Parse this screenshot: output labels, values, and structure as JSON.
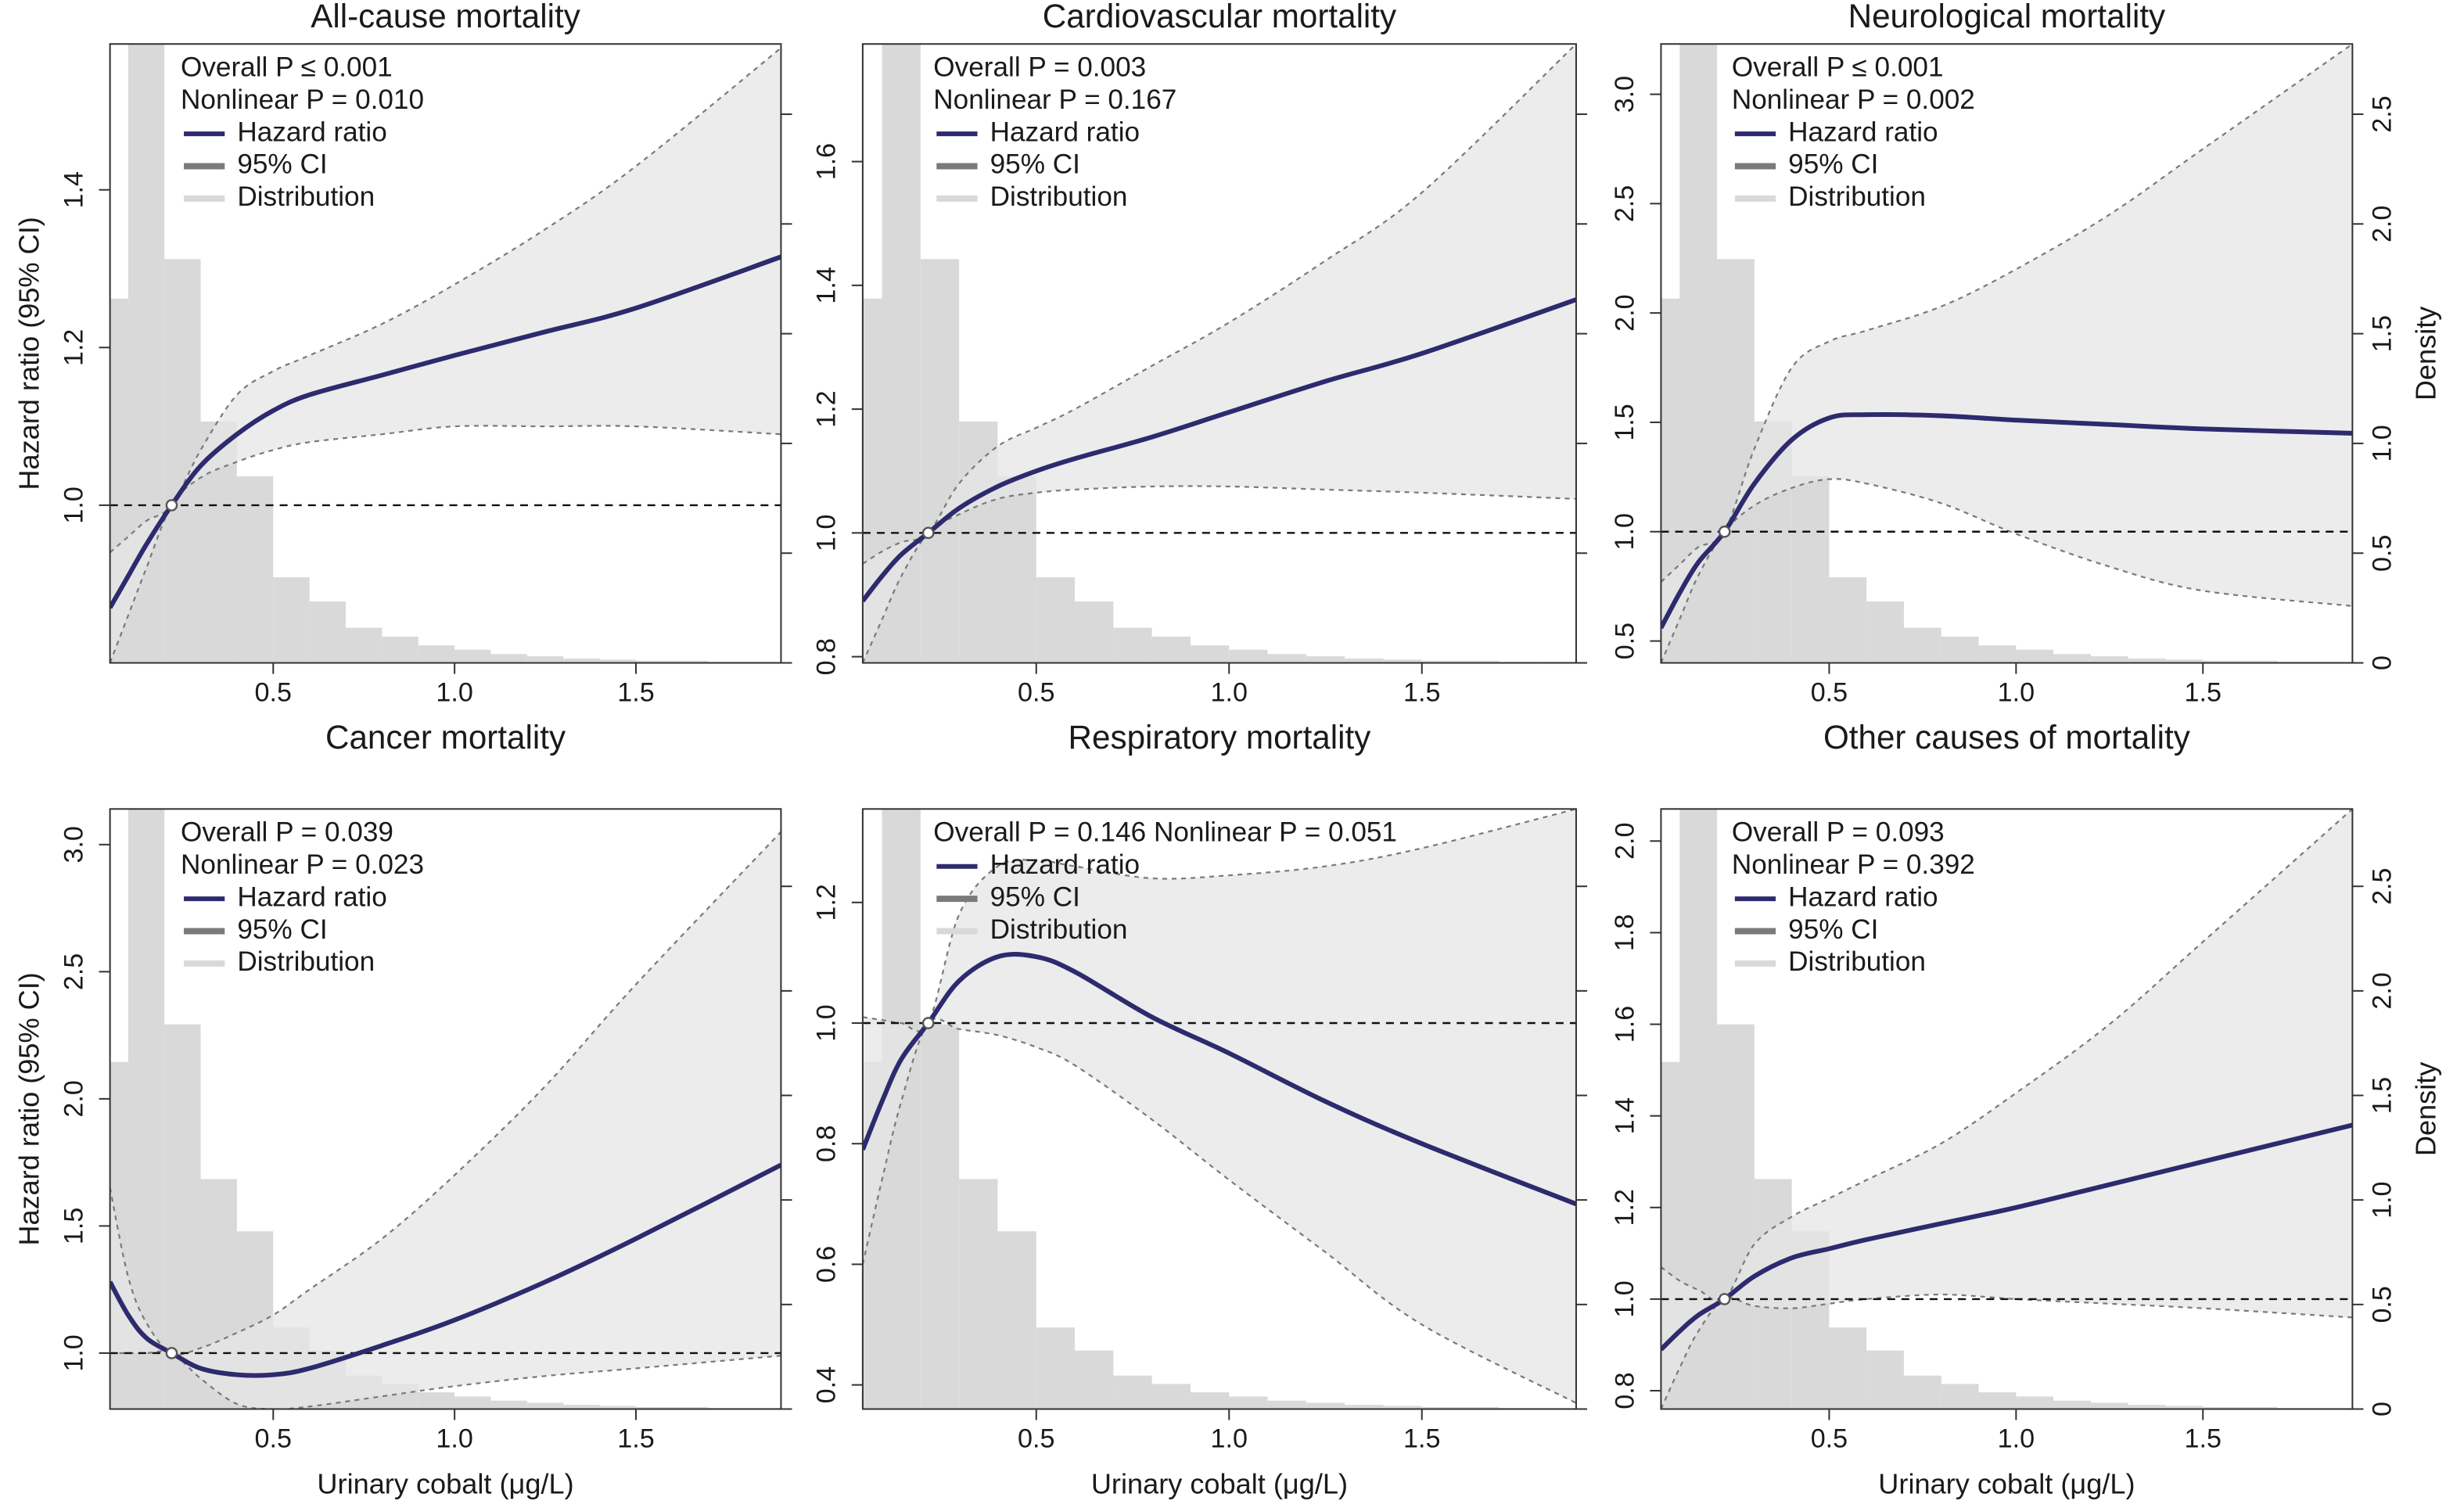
{
  "chart_data": [
    {
      "type": "line",
      "title": "All-cause mortality",
      "ylabel": "Hazard ratio (95% CI)",
      "annotations": [
        "Overall P ≤ 0.001",
        "Nonlinear P = 0.010"
      ],
      "x": [
        0.05,
        0.1,
        0.15,
        0.22,
        0.3,
        0.4,
        0.5,
        0.6,
        0.8,
        1.0,
        1.25,
        1.5,
        1.9
      ],
      "series": [
        {
          "name": "Hazard ratio",
          "color": "#2d2a6e",
          "values": [
            0.87,
            0.91,
            0.95,
            1.0,
            1.05,
            1.09,
            1.12,
            1.14,
            1.165,
            1.19,
            1.22,
            1.25,
            1.315
          ]
        }
      ],
      "ci": {
        "name": "95% CI",
        "color": "#7a7a7a",
        "fill": "#e6e6e6",
        "upper": [
          0.94,
          0.96,
          0.98,
          1.0,
          1.07,
          1.14,
          1.17,
          1.19,
          1.23,
          1.28,
          1.35,
          1.43,
          1.58
        ],
        "lower": [
          0.8,
          0.86,
          0.92,
          1.0,
          1.035,
          1.055,
          1.07,
          1.08,
          1.09,
          1.1,
          1.1,
          1.1,
          1.09
        ]
      },
      "distribution": {
        "name": "Distribution",
        "color": "#d9d9d9",
        "bins": [
          0.05,
          0.1,
          0.2,
          0.3,
          0.4,
          0.5,
          0.6,
          0.7,
          0.8,
          0.9,
          1.0,
          1.1,
          1.2,
          1.3,
          1.4,
          1.5,
          1.6,
          1.7,
          1.8,
          1.9
        ],
        "density": [
          1.66,
          3.5,
          1.84,
          1.1,
          0.85,
          0.39,
          0.28,
          0.16,
          0.12,
          0.08,
          0.06,
          0.04,
          0.03,
          0.02,
          0.015,
          0.01,
          0.01,
          0.005,
          0.005
        ]
      },
      "hline": 1,
      "reference": {
        "x": 0.22,
        "y": 1
      },
      "xlim": [
        0.05,
        1.9
      ],
      "xticks": [
        0.5,
        {
          "value": 1,
          "label": "1.0"
        },
        1.5
      ],
      "ylim": [
        0.8,
        1.585
      ],
      "yticks": [
        {
          "value": 1,
          "label": "1.0"
        },
        1.2,
        1.4
      ],
      "y2lim": [
        0,
        2.82
      ],
      "y2ticks": [
        0,
        0.5,
        {
          "value": 1,
          "label": "1.0"
        },
        1.5,
        {
          "value": 2,
          "label": "2.0"
        },
        2.5
      ],
      "y2ticklabels": false
    },
    {
      "type": "line",
      "title": "Cardiovascular mortality",
      "annotations": [
        "Overall P = 0.003",
        "Nonlinear P = 0.167"
      ],
      "x": [
        0.05,
        0.1,
        0.15,
        0.22,
        0.3,
        0.4,
        0.5,
        0.6,
        0.8,
        1.0,
        1.25,
        1.5,
        1.9
      ],
      "series": [
        {
          "name": "Hazard ratio",
          "color": "#2d2a6e",
          "values": [
            0.89,
            0.93,
            0.965,
            1.0,
            1.04,
            1.075,
            1.1,
            1.12,
            1.155,
            1.195,
            1.245,
            1.29,
            1.377
          ]
        }
      ],
      "ci": {
        "name": "95% CI",
        "color": "#7a7a7a",
        "fill": "#e6e6e6",
        "upper": [
          0.95,
          0.97,
          0.985,
          1.0,
          1.08,
          1.14,
          1.17,
          1.2,
          1.27,
          1.34,
          1.44,
          1.55,
          1.79
        ],
        "lower": [
          0.79,
          0.86,
          0.93,
          1.0,
          1.03,
          1.055,
          1.065,
          1.07,
          1.075,
          1.075,
          1.07,
          1.065,
          1.055
        ]
      },
      "distribution": {
        "name": "Distribution",
        "color": "#d9d9d9",
        "bins": [
          0.05,
          0.1,
          0.2,
          0.3,
          0.4,
          0.5,
          0.6,
          0.7,
          0.8,
          0.9,
          1.0,
          1.1,
          1.2,
          1.3,
          1.4,
          1.5,
          1.6,
          1.7,
          1.8,
          1.9
        ],
        "density": [
          1.66,
          3.5,
          1.84,
          1.1,
          0.85,
          0.39,
          0.28,
          0.16,
          0.12,
          0.08,
          0.06,
          0.04,
          0.03,
          0.02,
          0.015,
          0.01,
          0.01,
          0.005,
          0.005
        ]
      },
      "hline": 1,
      "reference": {
        "x": 0.22,
        "y": 1
      },
      "xlim": [
        0.05,
        1.9
      ],
      "xticks": [
        0.5,
        {
          "value": 1,
          "label": "1.0"
        },
        1.5
      ],
      "ylim": [
        0.79,
        1.79
      ],
      "yticks": [
        0.8,
        {
          "value": 1,
          "label": "1.0"
        },
        1.2,
        1.4,
        1.6
      ],
      "y2lim": [
        0,
        2.82
      ],
      "y2ticks": [
        0,
        0.5,
        {
          "value": 1,
          "label": "1.0"
        },
        1.5,
        {
          "value": 2,
          "label": "2.0"
        },
        2.5
      ],
      "y2ticklabels": false
    },
    {
      "type": "line",
      "title": "Neurological mortality",
      "y2label": "Density",
      "annotations": [
        "Overall P ≤ 0.001",
        "Nonlinear P = 0.002"
      ],
      "x": [
        0.05,
        0.1,
        0.15,
        0.22,
        0.3,
        0.4,
        0.5,
        0.6,
        0.8,
        1.0,
        1.25,
        1.5,
        1.9
      ],
      "series": [
        {
          "name": "Hazard ratio",
          "color": "#2d2a6e",
          "values": [
            0.56,
            0.72,
            0.86,
            1.0,
            1.22,
            1.42,
            1.52,
            1.535,
            1.53,
            1.51,
            1.49,
            1.47,
            1.45
          ]
        }
      ],
      "ci": {
        "name": "95% CI",
        "color": "#7a7a7a",
        "fill": "#e6e6e6",
        "upper": [
          0.77,
          0.85,
          0.93,
          1.0,
          1.38,
          1.75,
          1.87,
          1.92,
          2.03,
          2.2,
          2.45,
          2.75,
          3.23
        ],
        "lower": [
          0.4,
          0.6,
          0.8,
          1.0,
          1.12,
          1.2,
          1.24,
          1.22,
          1.13,
          0.99,
          0.84,
          0.73,
          0.66
        ]
      },
      "distribution": {
        "name": "Distribution",
        "color": "#d9d9d9",
        "bins": [
          0.05,
          0.1,
          0.2,
          0.3,
          0.4,
          0.5,
          0.6,
          0.7,
          0.8,
          0.9,
          1.0,
          1.1,
          1.2,
          1.3,
          1.4,
          1.5,
          1.6,
          1.7,
          1.8,
          1.9
        ],
        "density": [
          1.66,
          3.5,
          1.84,
          1.1,
          0.85,
          0.39,
          0.28,
          0.16,
          0.12,
          0.08,
          0.06,
          0.04,
          0.03,
          0.02,
          0.015,
          0.01,
          0.01,
          0.005,
          0.005
        ]
      },
      "hline": 1,
      "reference": {
        "x": 0.22,
        "y": 1
      },
      "xlim": [
        0.05,
        1.9
      ],
      "xticks": [
        0.5,
        {
          "value": 1,
          "label": "1.0"
        },
        1.5
      ],
      "ylim": [
        0.4,
        3.23
      ],
      "yticks": [
        0.5,
        {
          "value": 1,
          "label": "1.0"
        },
        1.5,
        {
          "value": 2,
          "label": "2.0"
        },
        2.5,
        {
          "value": 3,
          "label": "3.0"
        }
      ],
      "y2lim": [
        0,
        2.82
      ],
      "y2ticks": [
        0,
        0.5,
        {
          "value": 1,
          "label": "1.0"
        },
        1.5,
        {
          "value": 2,
          "label": "2.0"
        },
        2.5
      ],
      "y2ticklabels": true
    },
    {
      "type": "line",
      "title": "Cancer mortality",
      "xlabel": "Urinary cobalt (μg/L)",
      "ylabel": "Hazard ratio (95% CI)",
      "annotations": [
        "Overall P = 0.039",
        "Nonlinear P = 0.023"
      ],
      "x": [
        0.05,
        0.1,
        0.15,
        0.22,
        0.3,
        0.4,
        0.5,
        0.6,
        0.8,
        1.0,
        1.25,
        1.5,
        1.9
      ],
      "series": [
        {
          "name": "Hazard ratio",
          "color": "#2d2a6e",
          "values": [
            1.28,
            1.15,
            1.06,
            1.0,
            0.94,
            0.915,
            0.915,
            0.94,
            1.03,
            1.13,
            1.28,
            1.45,
            1.74
          ]
        }
      ],
      "ci": {
        "name": "95% CI",
        "color": "#7a7a7a",
        "fill": "#e6e6e6",
        "upper": [
          1.65,
          1.3,
          1.12,
          1.0,
          1.02,
          1.08,
          1.15,
          1.25,
          1.45,
          1.7,
          2.05,
          2.45,
          3.05
        ],
        "lower": [
          1.0,
          1.0,
          1.0,
          1.0,
          0.9,
          0.8,
          0.78,
          0.79,
          0.83,
          0.87,
          0.91,
          0.94,
          0.99
        ]
      },
      "distribution": {
        "name": "Distribution",
        "color": "#d9d9d9",
        "bins": [
          0.05,
          0.1,
          0.2,
          0.3,
          0.4,
          0.5,
          0.6,
          0.7,
          0.8,
          0.9,
          1.0,
          1.1,
          1.2,
          1.3,
          1.4,
          1.5,
          1.6,
          1.7,
          1.8,
          1.9
        ],
        "density": [
          1.66,
          3.5,
          1.84,
          1.1,
          0.85,
          0.39,
          0.28,
          0.16,
          0.12,
          0.08,
          0.06,
          0.04,
          0.03,
          0.02,
          0.015,
          0.01,
          0.01,
          0.005,
          0.005
        ]
      },
      "hline": 1,
      "reference": {
        "x": 0.22,
        "y": 1
      },
      "xlim": [
        0.05,
        1.9
      ],
      "xticks": [
        0.5,
        {
          "value": 1,
          "label": "1.0"
        },
        1.5
      ],
      "ylim": [
        0.78,
        3.14
      ],
      "yticks": [
        {
          "value": 1,
          "label": "1.0"
        },
        1.5,
        {
          "value": 2,
          "label": "2.0"
        },
        2.5,
        {
          "value": 3,
          "label": "3.0"
        }
      ],
      "y2lim": [
        0,
        2.87
      ],
      "y2ticks": [
        0,
        0.5,
        {
          "value": 1,
          "label": "1.0"
        },
        1.5,
        {
          "value": 2,
          "label": "2.0"
        },
        2.5
      ],
      "y2ticklabels": false
    },
    {
      "type": "line",
      "title": "Respiratory mortality",
      "xlabel": "Urinary cobalt (μg/L)",
      "annotations": [
        "Overall P = 0.146 Nonlinear P = 0.051"
      ],
      "x": [
        0.05,
        0.1,
        0.15,
        0.22,
        0.3,
        0.4,
        0.5,
        0.6,
        0.8,
        1.0,
        1.25,
        1.5,
        1.9
      ],
      "series": [
        {
          "name": "Hazard ratio",
          "color": "#2d2a6e",
          "values": [
            0.79,
            0.87,
            0.94,
            1.0,
            1.07,
            1.11,
            1.11,
            1.085,
            1.01,
            0.95,
            0.87,
            0.8,
            0.7
          ]
        }
      ],
      "ci": {
        "name": "95% CI",
        "color": "#7a7a7a",
        "fill": "#e6e6e6",
        "upper": [
          1.01,
          1.005,
          1.0,
          1.0,
          1.18,
          1.26,
          1.27,
          1.26,
          1.24,
          1.245,
          1.26,
          1.29,
          1.355
        ],
        "lower": [
          0.6,
          0.74,
          0.87,
          1.0,
          0.99,
          0.98,
          0.96,
          0.93,
          0.84,
          0.74,
          0.62,
          0.5,
          0.37
        ]
      },
      "distribution": {
        "name": "Distribution",
        "color": "#d9d9d9",
        "bins": [
          0.05,
          0.1,
          0.2,
          0.3,
          0.4,
          0.5,
          0.6,
          0.7,
          0.8,
          0.9,
          1.0,
          1.1,
          1.2,
          1.3,
          1.4,
          1.5,
          1.6,
          1.7,
          1.8,
          1.9
        ],
        "density": [
          1.66,
          3.5,
          1.84,
          1.1,
          0.85,
          0.39,
          0.28,
          0.16,
          0.12,
          0.08,
          0.06,
          0.04,
          0.03,
          0.02,
          0.015,
          0.01,
          0.01,
          0.005,
          0.005
        ]
      },
      "hline": 1,
      "reference": {
        "x": 0.22,
        "y": 1
      },
      "xlim": [
        0.05,
        1.9
      ],
      "xticks": [
        0.5,
        {
          "value": 1,
          "label": "1.0"
        },
        1.5
      ],
      "ylim": [
        0.36,
        1.355
      ],
      "yticks": [
        0.4,
        0.6,
        0.8,
        {
          "value": 1,
          "label": "1.0"
        },
        1.2
      ],
      "y2lim": [
        0,
        2.87
      ],
      "y2ticks": [
        0,
        0.5,
        {
          "value": 1,
          "label": "1.0"
        },
        1.5,
        {
          "value": 2,
          "label": "2.0"
        },
        2.5
      ],
      "y2ticklabels": false
    },
    {
      "type": "line",
      "title": "Other causes of mortality",
      "xlabel": "Urinary cobalt (μg/L)",
      "y2label": "Density",
      "annotations": [
        "Overall P = 0.093",
        "Nonlinear P = 0.392"
      ],
      "x": [
        0.05,
        0.1,
        0.15,
        0.22,
        0.3,
        0.4,
        0.5,
        0.6,
        0.8,
        1.0,
        1.25,
        1.5,
        1.9
      ],
      "series": [
        {
          "name": "Hazard ratio",
          "color": "#2d2a6e",
          "values": [
            0.89,
            0.93,
            0.965,
            1.0,
            1.05,
            1.09,
            1.11,
            1.13,
            1.165,
            1.2,
            1.25,
            1.3,
            1.38
          ]
        }
      ],
      "ci": {
        "name": "95% CI",
        "color": "#7a7a7a",
        "fill": "#e6e6e6",
        "upper": [
          1.07,
          1.04,
          1.02,
          1.0,
          1.12,
          1.18,
          1.22,
          1.26,
          1.34,
          1.45,
          1.6,
          1.78,
          2.07
        ],
        "lower": [
          0.76,
          0.85,
          0.93,
          1.0,
          0.985,
          0.98,
          0.99,
          1.0,
          1.01,
          1.0,
          0.99,
          0.98,
          0.96
        ]
      },
      "distribution": {
        "name": "Distribution",
        "color": "#d9d9d9",
        "bins": [
          0.05,
          0.1,
          0.2,
          0.3,
          0.4,
          0.5,
          0.6,
          0.7,
          0.8,
          0.9,
          1.0,
          1.1,
          1.2,
          1.3,
          1.4,
          1.5,
          1.6,
          1.7,
          1.8,
          1.9
        ],
        "density": [
          1.66,
          3.5,
          1.84,
          1.1,
          0.85,
          0.39,
          0.28,
          0.16,
          0.12,
          0.08,
          0.06,
          0.04,
          0.03,
          0.02,
          0.015,
          0.01,
          0.01,
          0.005,
          0.005
        ]
      },
      "hline": 1,
      "reference": {
        "x": 0.22,
        "y": 1
      },
      "xlim": [
        0.05,
        1.9
      ],
      "xticks": [
        0.5,
        {
          "value": 1,
          "label": "1.0"
        },
        1.5
      ],
      "ylim": [
        0.76,
        2.07
      ],
      "yticks": [
        0.8,
        {
          "value": 1,
          "label": "1.0"
        },
        1.2,
        1.4,
        1.6,
        1.8,
        {
          "value": 2,
          "label": "2.0"
        }
      ],
      "y2lim": [
        0,
        2.87
      ],
      "y2ticks": [
        0,
        0.5,
        {
          "value": 1,
          "label": "1.0"
        },
        1.5,
        {
          "value": 2,
          "label": "2.0"
        },
        2.5
      ],
      "y2ticklabels": true
    }
  ]
}
